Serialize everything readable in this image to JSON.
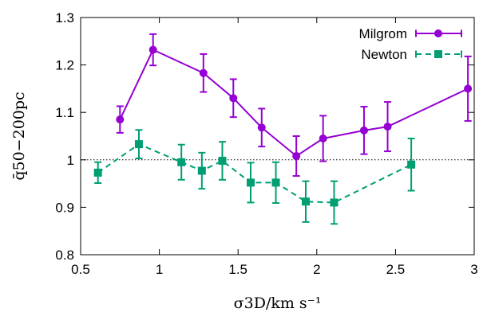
{
  "chart_data": {
    "type": "line",
    "xlabel": "σ3D/km s⁻¹",
    "ylabel": "q̄50−200pc",
    "xlim": [
      0.5,
      3.0
    ],
    "ylim": [
      0.8,
      1.3
    ],
    "x_ticks": [
      "0.5",
      "1",
      "1.5",
      "2",
      "2.5",
      "3"
    ],
    "y_ticks": [
      "0.8",
      "0.9",
      "1",
      "1.1",
      "1.2",
      "1.3"
    ],
    "x_tick_values": [
      0.5,
      1.0,
      1.5,
      2.0,
      2.5,
      3.0
    ],
    "y_tick_values": [
      0.8,
      0.9,
      1.0,
      1.1,
      1.2,
      1.3
    ],
    "reference_line": {
      "y": 1.0,
      "style": "dotted"
    },
    "grid": false,
    "legend_position": "top-right",
    "series": [
      {
        "name": "Milgrom",
        "color": "#9400d3",
        "line_style": "solid",
        "marker": "circle",
        "x": [
          0.75,
          0.96,
          1.28,
          1.47,
          1.65,
          1.87,
          2.04,
          2.3,
          2.45,
          2.96
        ],
        "y": [
          1.085,
          1.232,
          1.183,
          1.13,
          1.068,
          1.008,
          1.045,
          1.062,
          1.07,
          1.15
        ],
        "yerr": [
          0.028,
          0.033,
          0.04,
          0.04,
          0.04,
          0.042,
          0.048,
          0.05,
          0.052,
          0.068
        ]
      },
      {
        "name": "Newton",
        "color": "#009e73",
        "line_style": "dashed",
        "marker": "square",
        "x": [
          0.61,
          0.87,
          1.14,
          1.27,
          1.4,
          1.58,
          1.74,
          1.93,
          2.11,
          2.6
        ],
        "y": [
          0.973,
          1.033,
          0.995,
          0.977,
          0.998,
          0.952,
          0.952,
          0.912,
          0.91,
          0.99
        ],
        "yerr": [
          0.022,
          0.03,
          0.037,
          0.038,
          0.04,
          0.042,
          0.043,
          0.043,
          0.045,
          0.055
        ]
      }
    ]
  }
}
